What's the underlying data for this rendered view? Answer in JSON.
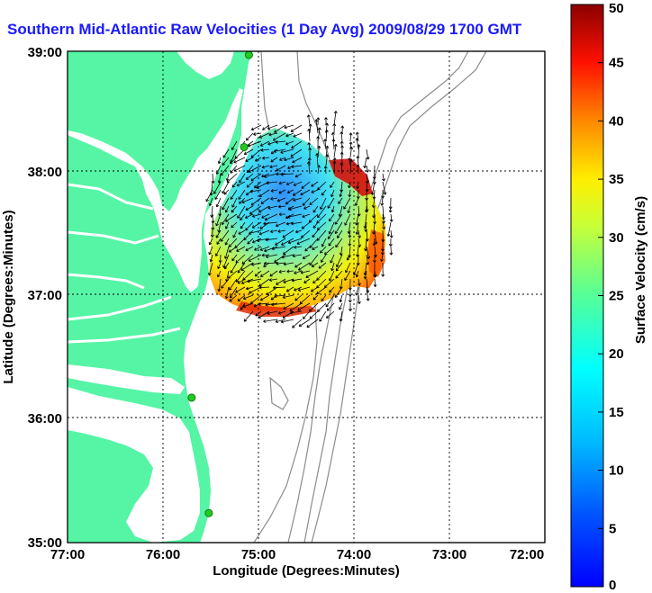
{
  "title": "Southern Mid-Atlantic Raw Velocities (1 Day Avg) 2009/08/29 1700 GMT",
  "map": {
    "xlabel": "Longitude (Degrees:Minutes)",
    "ylabel": "Latitude (Degrees:Minutes)",
    "x_ticks": [
      "77:00",
      "76:00",
      "75:00",
      "74:00",
      "73:00",
      "72:00"
    ],
    "y_ticks": [
      "39:00",
      "38:00",
      "37:00",
      "36:00",
      "35:00"
    ],
    "lon_range": [
      -77,
      -72
    ],
    "lat_range": [
      35,
      39
    ],
    "colors": {
      "land": "#55f5a5",
      "water": "#ffffff",
      "bathymetry": "#8c8c8c",
      "grid": "#000000",
      "station": "#22cc22"
    }
  },
  "colorbar": {
    "label": "Surface Velocity (cm/s)",
    "ticks": [
      "0",
      "5",
      "10",
      "15",
      "20",
      "25",
      "30",
      "35",
      "40",
      "45",
      "50"
    ],
    "range": [
      0,
      50
    ],
    "colormap": "jet"
  },
  "chart_data": {
    "type": "heatmap",
    "title": "Southern Mid-Atlantic Raw Velocities (1 Day Avg) 2009/08/29 1700 GMT",
    "xlabel": "Longitude (Degrees:Minutes)",
    "ylabel": "Latitude (Degrees:Minutes)",
    "xlim": [
      -77,
      -72
    ],
    "ylim": [
      35,
      39
    ],
    "grid": true,
    "units": "cm/s",
    "value_range": [
      0,
      50
    ],
    "velocity_field": [
      {
        "lon": -75.4,
        "lat": 37.45,
        "speed": 5
      },
      {
        "lon": -75.0,
        "lat": 37.7,
        "speed": 6
      },
      {
        "lon": -74.7,
        "lat": 37.8,
        "speed": 12
      },
      {
        "lon": -74.4,
        "lat": 37.6,
        "speed": 18
      },
      {
        "lon": -74.1,
        "lat": 37.5,
        "speed": 25
      },
      {
        "lon": -74.2,
        "lat": 37.95,
        "speed": 45
      },
      {
        "lon": -73.85,
        "lat": 37.25,
        "speed": 38
      },
      {
        "lon": -74.2,
        "lat": 37.05,
        "speed": 22
      },
      {
        "lon": -74.8,
        "lat": 37.05,
        "speed": 28
      },
      {
        "lon": -75.2,
        "lat": 37.05,
        "speed": 20
      },
      {
        "lon": -75.4,
        "lat": 37.2,
        "speed": 30
      },
      {
        "lon": -74.95,
        "lat": 38.2,
        "speed": 18
      }
    ],
    "stations": [
      {
        "lon": -75.1,
        "lat": 38.97
      },
      {
        "lon": -75.15,
        "lat": 38.22
      },
      {
        "lon": -75.7,
        "lat": 36.18
      },
      {
        "lon": -75.52,
        "lat": 35.24
      }
    ]
  }
}
